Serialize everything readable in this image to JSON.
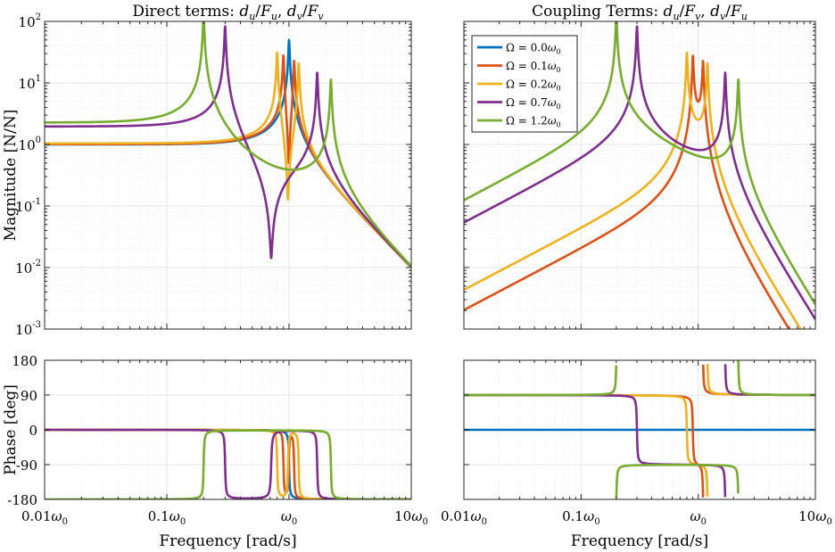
{
  "chart_data": [
    {
      "type": "line",
      "title": "Direct terms: d_u/F_u, d_v/F_v",
      "ylabel": "Magnitude [N/N]",
      "xlabel": "",
      "x_scale": "log",
      "y_scale": "log",
      "xlim": [
        0.01,
        10
      ],
      "ylim": [
        0.001,
        100
      ],
      "x_ticks": [
        0.01,
        0.1,
        1,
        10
      ],
      "y_ticks": [
        0.001,
        0.01,
        0.1,
        1,
        10,
        100
      ],
      "y_tick_labels": [
        "10^-3",
        "10^-2",
        "10^-1",
        "10^0",
        "10^1",
        "10^2"
      ],
      "grid": true,
      "series": [
        {
          "omega_ratio": 0.0,
          "color": "#0072BD"
        },
        {
          "omega_ratio": 0.1,
          "color": "#D95319"
        },
        {
          "omega_ratio": 0.2,
          "color": "#EDB120"
        },
        {
          "omega_ratio": 0.7,
          "color": "#7E2F8E"
        },
        {
          "omega_ratio": 1.2,
          "color": "#77AC30"
        }
      ]
    },
    {
      "type": "line",
      "title": "Coupling Terms: d_u/F_v, d_v/F_u",
      "x_scale": "log",
      "y_scale": "log",
      "xlim": [
        0.01,
        10
      ],
      "ylim": [
        0.001,
        100
      ],
      "grid": true,
      "legend": {
        "placement": "top-left",
        "entries": [
          "Ω = 0.0ω0",
          "Ω = 0.1ω0",
          "Ω = 0.2ω0",
          "Ω = 0.7ω0",
          "Ω = 1.2ω0"
        ]
      }
    },
    {
      "type": "line",
      "ylabel": "Phase [deg]",
      "xlabel": "Frequency [rad/s]",
      "x_scale": "log",
      "xlim": [
        0.01,
        10
      ],
      "ylim": [
        -180,
        180
      ],
      "y_ticks": [
        -180,
        -90,
        0,
        90,
        180
      ],
      "grid": true
    },
    {
      "type": "line",
      "xlabel": "Frequency [rad/s]",
      "x_scale": "log",
      "xlim": [
        0.01,
        10
      ],
      "ylim": [
        -180,
        180
      ],
      "grid": true
    }
  ],
  "x_tick_labels": [
    "0.01ω0",
    "0.1ω0",
    "ω0",
    "10ω0"
  ],
  "y_phase_tick_labels": [
    "180",
    "90",
    "0",
    "-90",
    "-180"
  ]
}
